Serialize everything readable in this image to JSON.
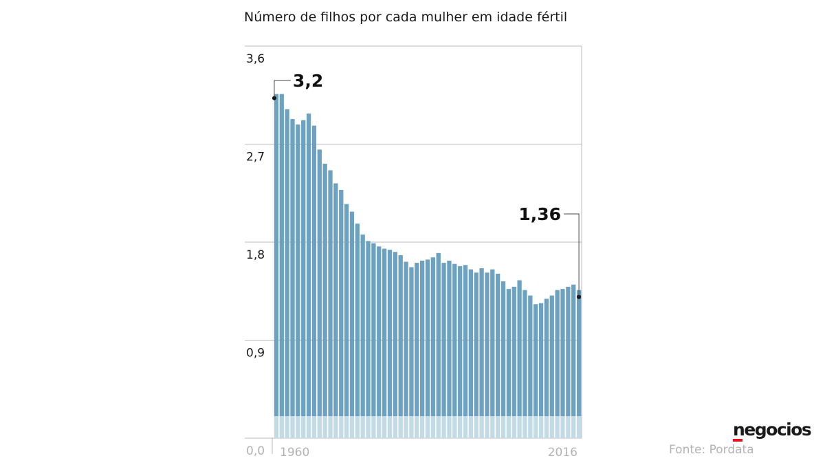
{
  "chart_data": {
    "type": "bar",
    "title": "Número de filhos por cada mulher em idade fértil",
    "x_start": 1960,
    "x_end": 2016,
    "x_tick_labels": [
      "1960",
      "2016"
    ],
    "y_ticks": [
      0.0,
      0.9,
      1.8,
      2.7,
      3.6
    ],
    "y_tick_labels": [
      "0,0",
      "0,9",
      "1,8",
      "2,7",
      "3,6"
    ],
    "ylim": [
      0,
      3.6
    ],
    "grid": true,
    "values": [
      3.16,
      3.16,
      3.02,
      2.93,
      2.88,
      2.92,
      2.98,
      2.87,
      2.65,
      2.52,
      2.46,
      2.34,
      2.28,
      2.15,
      2.08,
      1.97,
      1.87,
      1.81,
      1.79,
      1.76,
      1.74,
      1.73,
      1.71,
      1.68,
      1.62,
      1.57,
      1.61,
      1.63,
      1.64,
      1.66,
      1.7,
      1.61,
      1.63,
      1.6,
      1.58,
      1.59,
      1.55,
      1.52,
      1.56,
      1.52,
      1.55,
      1.51,
      1.44,
      1.37,
      1.39,
      1.45,
      1.36,
      1.31,
      1.23,
      1.24,
      1.28,
      1.31,
      1.36,
      1.37,
      1.39,
      1.41,
      1.36
    ],
    "annotations": [
      {
        "label": "3,2",
        "year": 1960,
        "value": 3.2
      },
      {
        "label": "1,36",
        "year": 2016,
        "value": 1.36
      }
    ],
    "colors": {
      "bar": "#6ca1bf",
      "bar_base": "#c3dbe6",
      "grid": "#b8b8b8",
      "axis_label": "#1a1a1a",
      "axis_label_muted": "#b3b3b3"
    }
  },
  "branding": {
    "logo": "negocios",
    "logo_accent": "#e3141c"
  },
  "source": "Fonte: Pordata"
}
